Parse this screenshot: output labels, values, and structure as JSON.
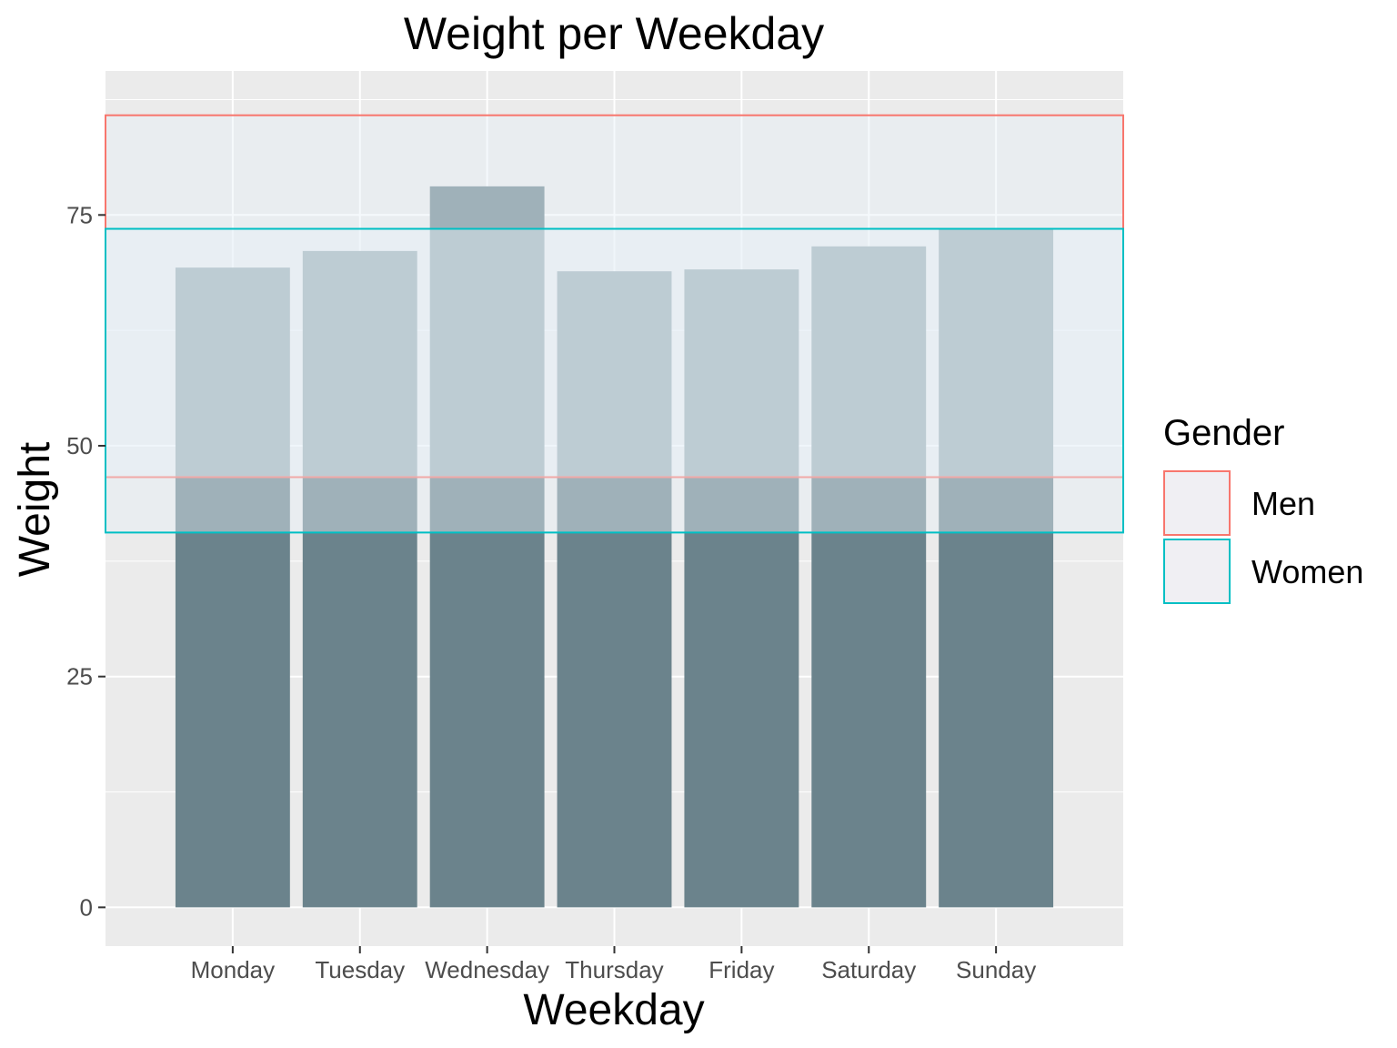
{
  "chart_data": {
    "type": "bar",
    "title": "Weight per Weekday",
    "xlabel": "Weekday",
    "ylabel": "Weight",
    "categories": [
      "Monday",
      "Tuesday",
      "Wednesday",
      "Thursday",
      "Friday",
      "Saturday",
      "Sunday"
    ],
    "values": [
      69.3,
      71.1,
      78.1,
      68.9,
      69.1,
      71.6,
      73.5
    ],
    "ylim": [
      -4.2,
      90.6
    ],
    "yticks": [
      0,
      25,
      50,
      75
    ],
    "grid": true,
    "bar_color": "#6b838c",
    "panel_background": "#ebebeb",
    "gender_ranges": [
      {
        "name": "Men",
        "ymin": 46.6,
        "ymax": 85.8,
        "color": "#f8766d"
      },
      {
        "name": "Women",
        "ymin": 40.6,
        "ymax": 73.5,
        "color": "#00bfc4"
      }
    ],
    "legend": {
      "title": "Gender",
      "position": "right",
      "entries": [
        "Men",
        "Women"
      ]
    }
  }
}
